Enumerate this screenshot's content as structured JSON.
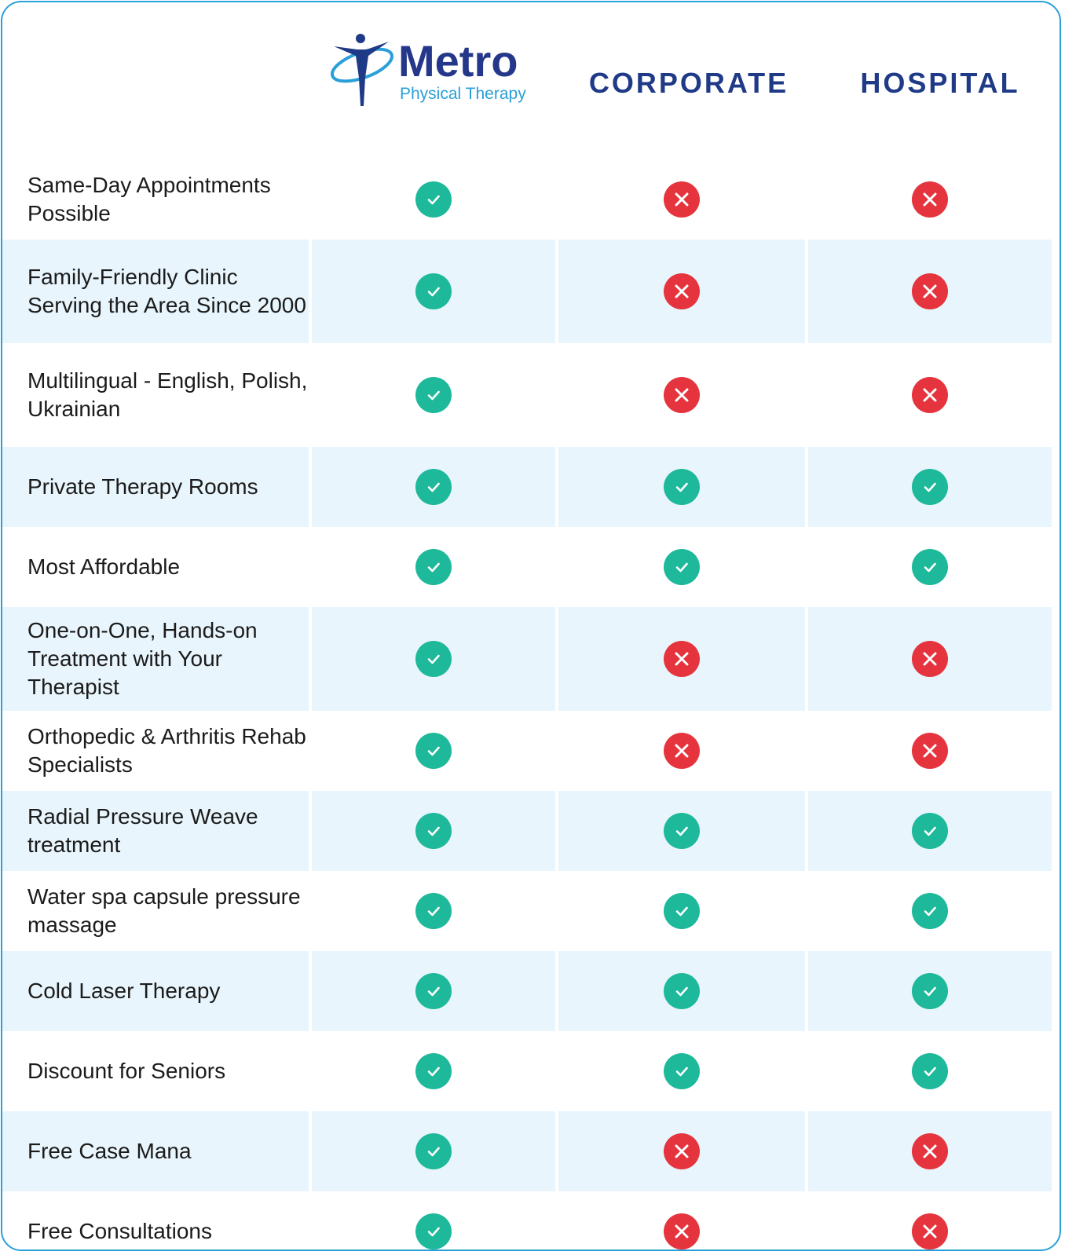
{
  "header": {
    "brand": "Metro",
    "brand_subtitle": "Physical Therapy",
    "columns": [
      "CORPORATE",
      "HOSPITAL"
    ]
  },
  "table": {
    "rows": [
      {
        "feature": "Same-Day Appointments Possible",
        "metro": true,
        "corporate": false,
        "hospital": false
      },
      {
        "feature": "Family-Friendly Clinic Serving the Area Since 2000",
        "metro": true,
        "corporate": false,
        "hospital": false
      },
      {
        "feature": "Multilingual - English, Polish, Ukrainian",
        "metro": true,
        "corporate": false,
        "hospital": false
      },
      {
        "feature": "Private Therapy Rooms",
        "metro": true,
        "corporate": true,
        "hospital": true
      },
      {
        "feature": "Most Affordable",
        "metro": true,
        "corporate": true,
        "hospital": true
      },
      {
        "feature": "One-on-One, Hands-on Treatment with Your Therapist",
        "metro": true,
        "corporate": false,
        "hospital": false
      },
      {
        "feature": "Orthopedic & Arthritis Rehab Specialists",
        "metro": true,
        "corporate": false,
        "hospital": false
      },
      {
        "feature": "Radial Pressure Weave treatment",
        "metro": true,
        "corporate": true,
        "hospital": true
      },
      {
        "feature": "Water spa capsule pressure massage",
        "metro": true,
        "corporate": true,
        "hospital": true
      },
      {
        "feature": "Cold Laser Therapy",
        "metro": true,
        "corporate": true,
        "hospital": true
      },
      {
        "feature": "Discount for Seniors",
        "metro": true,
        "corporate": true,
        "hospital": true
      },
      {
        "feature": "Free Case Mana",
        "metro": true,
        "corporate": false,
        "hospital": false
      },
      {
        "feature": "Free Consultations",
        "metro": true,
        "corporate": false,
        "hospital": false
      }
    ]
  }
}
